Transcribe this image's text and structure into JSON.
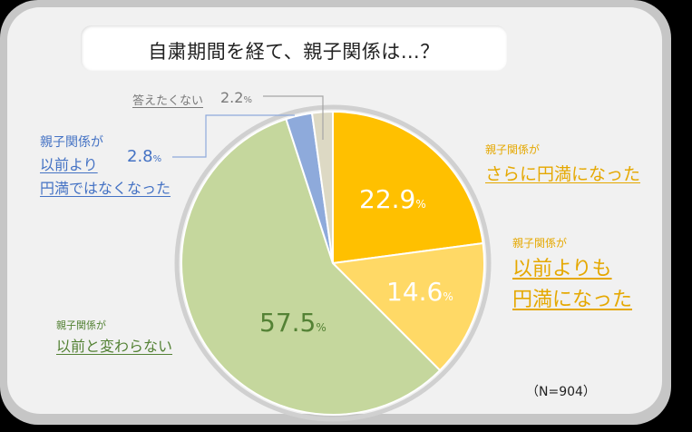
{
  "title": "自粛期間を経て、親子関係は…？",
  "sample_note": "（N=904）",
  "percent_sign": "%",
  "labels": {
    "more_harmonious": {
      "line1": "親子関係が",
      "line2": "さらに円満になった",
      "value": "22.9"
    },
    "more_than_before": {
      "line1": "親子関係が",
      "line2": "以前よりも",
      "line3": "円満になった",
      "value": "14.6"
    },
    "unchanged": {
      "line1": "親子関係が",
      "line2": "以前と変わらない",
      "value": "57.5"
    },
    "less_harmonious": {
      "line1": "親子関係が",
      "line2": "以前より",
      "line3": "円満ではなくなった",
      "value": "2.8"
    },
    "no_answer": {
      "line1": "答えたくない",
      "value": "2.2"
    }
  },
  "colors": {
    "more_harmonious": "#ffc000",
    "more_than_before": "#ffd966",
    "unchanged": "#c5d79d",
    "less_harmonious": "#8eaadb",
    "no_answer": "#ddd9c4"
  },
  "chart_data": {
    "type": "pie",
    "title": "自粛期間を経て、親子関係は…？",
    "categories": [
      "親子関係がさらに円満になった",
      "親子関係が以前よりも円満になった",
      "親子関係が以前と変わらない",
      "親子関係が以前より円満ではなくなった",
      "答えたくない"
    ],
    "values": [
      22.9,
      14.6,
      57.5,
      2.8,
      2.2
    ],
    "unit": "%",
    "start_angle": "12 o'clock",
    "direction": "clockwise",
    "annotation": "(N=904)"
  }
}
